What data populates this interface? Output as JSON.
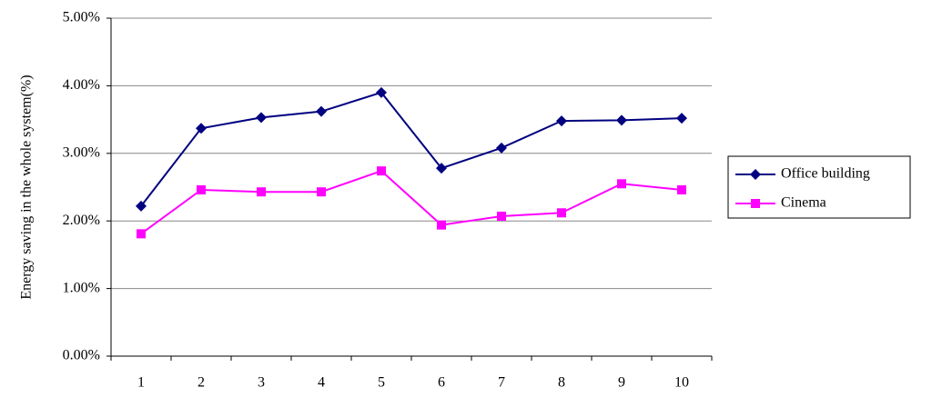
{
  "chart_data": {
    "type": "line",
    "y_label": "Energy saving in the whole system(%)",
    "categories": [
      "1",
      "2",
      "3",
      "4",
      "5",
      "6",
      "7",
      "8",
      "9",
      "10"
    ],
    "series": [
      {
        "name": "Office building",
        "color": "#000080",
        "marker": "diamond",
        "values": [
          2.22,
          3.37,
          3.53,
          3.62,
          3.9,
          2.78,
          3.08,
          3.48,
          3.49,
          3.52
        ]
      },
      {
        "name": "Cinema",
        "color": "#ff00ff",
        "marker": "square",
        "values": [
          1.81,
          2.46,
          2.43,
          2.43,
          2.74,
          1.94,
          2.07,
          2.12,
          2.55,
          2.46
        ]
      }
    ],
    "ylim": [
      0,
      5
    ],
    "yticks": [
      {
        "value": 0,
        "label": "0.00%"
      },
      {
        "value": 1,
        "label": "1.00%"
      },
      {
        "value": 2,
        "label": "2.00%"
      },
      {
        "value": 3,
        "label": "3.00%"
      },
      {
        "value": 4,
        "label": "4.00%"
      },
      {
        "value": 5,
        "label": "5.00%"
      }
    ],
    "grid": true,
    "legend": "right"
  }
}
